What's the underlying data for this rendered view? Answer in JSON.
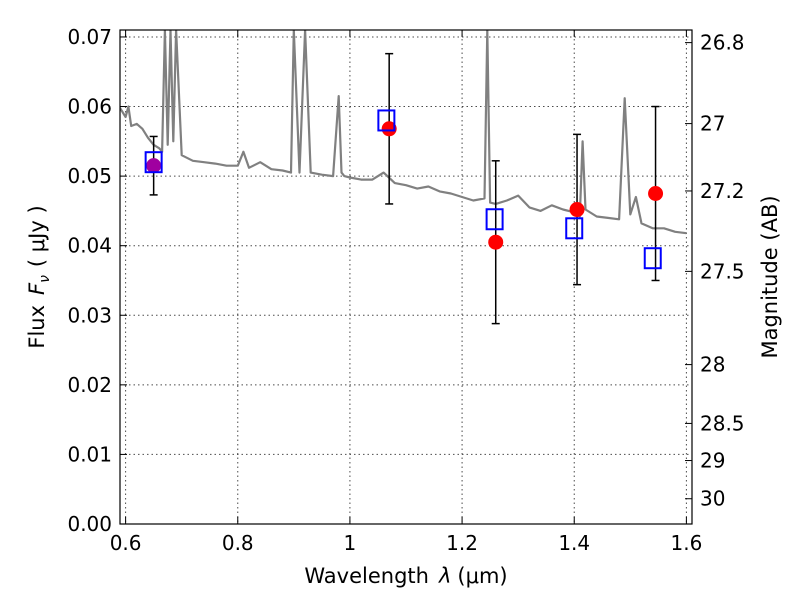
{
  "chart_data": {
    "type": "scatter",
    "xlabel_text": "Wavelength",
    "xlabel_symbol": "λ",
    "xlabel_unit": "(μm)",
    "ylabel_text": "Flux",
    "ylabel_symbol": "F",
    "ylabel_sub": "ν",
    "ylabel_unit": "( μJy )",
    "y2label": "Magnitude (AB)",
    "xlim": [
      0.59,
      1.61
    ],
    "ylim": [
      0.0,
      0.071
    ],
    "xticks": [
      0.6,
      0.8,
      1.0,
      1.2,
      1.4,
      1.6
    ],
    "xtick_labels": [
      "0.6",
      "0.8",
      "1",
      "1.2",
      "1.4",
      "1.6"
    ],
    "yticks": [
      0.0,
      0.01,
      0.02,
      0.03,
      0.04,
      0.05,
      0.06,
      0.07
    ],
    "ytick_labels": [
      "0.00",
      "0.01",
      "0.02",
      "0.03",
      "0.04",
      "0.05",
      "0.06",
      "0.07"
    ],
    "mag_ticks": [
      26.8,
      27,
      27.2,
      27.5,
      28,
      28.5,
      29,
      30
    ],
    "mag_tick_labels": [
      "26.8",
      "27",
      "27.2",
      "27.5",
      "28",
      "28.5",
      "29",
      "30"
    ],
    "grid": true,
    "colors": {
      "model": "#808080",
      "observed": "#ff0000",
      "model_photometry": "#0000ff",
      "overlap": "#a000a0",
      "errorbar": "#000000"
    },
    "series": [
      {
        "type": "line",
        "x": [
          0.59,
          0.6,
          0.605,
          0.61,
          0.62,
          0.63,
          0.64,
          0.65,
          0.66,
          0.665,
          0.67,
          0.675,
          0.68,
          0.685,
          0.69,
          0.7,
          0.72,
          0.74,
          0.76,
          0.78,
          0.8,
          0.81,
          0.82,
          0.84,
          0.86,
          0.88,
          0.895,
          0.9,
          0.91,
          0.92,
          0.93,
          0.95,
          0.97,
          0.98,
          0.985,
          0.99,
          1.0,
          1.02,
          1.04,
          1.06,
          1.08,
          1.1,
          1.12,
          1.14,
          1.16,
          1.18,
          1.2,
          1.22,
          1.24,
          1.245,
          1.25,
          1.26,
          1.28,
          1.3,
          1.32,
          1.34,
          1.36,
          1.38,
          1.4,
          1.41,
          1.415,
          1.42,
          1.44,
          1.46,
          1.48,
          1.49,
          1.5,
          1.51,
          1.52,
          1.54,
          1.56,
          1.58,
          1.6
        ],
        "y": [
          0.0598,
          0.0585,
          0.06,
          0.0572,
          0.0575,
          0.0568,
          0.0555,
          0.0545,
          0.054,
          0.0535,
          0.071,
          0.0545,
          0.071,
          0.055,
          0.071,
          0.053,
          0.0522,
          0.052,
          0.0518,
          0.0515,
          0.0515,
          0.0535,
          0.0512,
          0.052,
          0.051,
          0.0508,
          0.0505,
          0.071,
          0.0505,
          0.071,
          0.0505,
          0.0502,
          0.05,
          0.0615,
          0.0505,
          0.05,
          0.0498,
          0.0495,
          0.0495,
          0.0505,
          0.049,
          0.0487,
          0.0482,
          0.0485,
          0.0478,
          0.0475,
          0.047,
          0.0465,
          0.0468,
          0.071,
          0.0462,
          0.046,
          0.0465,
          0.0472,
          0.0455,
          0.045,
          0.0458,
          0.0452,
          0.0448,
          0.0442,
          0.055,
          0.0452,
          0.0442,
          0.044,
          0.0438,
          0.0612,
          0.0445,
          0.047,
          0.0432,
          0.0425,
          0.0425,
          0.042,
          0.0418
        ]
      },
      {
        "type": "scatter",
        "marker": "circle",
        "x": [
          0.65,
          1.07,
          1.26,
          1.405,
          1.545
        ],
        "y": [
          0.0515,
          0.0568,
          0.0405,
          0.0452,
          0.0475
        ],
        "yerr": [
          0.0042,
          0.0108,
          0.0117,
          0.0108,
          0.0125
        ]
      },
      {
        "type": "scatter",
        "marker": "square-open",
        "x": [
          0.65,
          1.065,
          1.258,
          1.4,
          1.54
        ],
        "y": [
          0.052,
          0.058,
          0.0438,
          0.0425,
          0.0382
        ]
      }
    ]
  }
}
